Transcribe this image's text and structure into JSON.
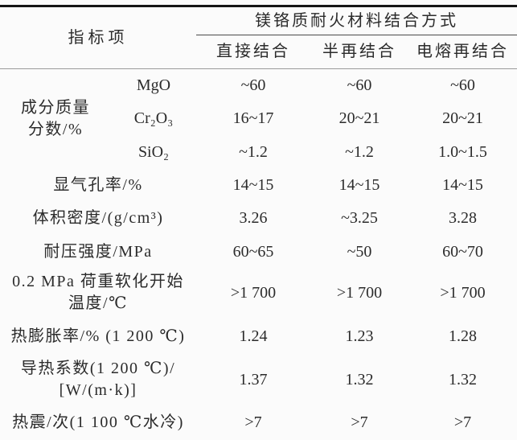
{
  "table": {
    "header": {
      "indicator_col": "指标项",
      "spanner": "镁铬质耐火材料结合方式",
      "columns": [
        "直接结合",
        "半再结合",
        "电熔再结合"
      ]
    },
    "composition_group": {
      "label": "成分质量\n分数/%",
      "rows": [
        {
          "sub": "MgO",
          "values": [
            "~60",
            "~60",
            "~60"
          ]
        },
        {
          "sub": "Cr₂O₃",
          "values": [
            "16~17",
            "20~21",
            "20~21"
          ]
        },
        {
          "sub": "SiO₂",
          "values": [
            "~1.2",
            "~1.2",
            "1.0~1.5"
          ]
        }
      ]
    },
    "rows": [
      {
        "label": "显气孔率/%",
        "values": [
          "14~15",
          "14~15",
          "14~15"
        ]
      },
      {
        "label": "体积密度/(g/cm³)",
        "values": [
          "3.26",
          "~3.25",
          "3.28"
        ]
      },
      {
        "label": "耐压强度/MPa",
        "values": [
          "60~65",
          "~50",
          "60~70"
        ]
      },
      {
        "label": "0.2 MPa 荷重软化开始\n温度/℃",
        "values": [
          ">1 700",
          ">1 700",
          ">1 700"
        ]
      },
      {
        "label": "热膨胀率/% (1 200 ℃)",
        "values": [
          "1.24",
          "1.23",
          "1.28"
        ]
      },
      {
        "label": "导热系数(1 200 ℃)/\n[W/(m·k)]",
        "values": [
          "1.37",
          "1.32",
          "1.32"
        ]
      },
      {
        "label": "热震/次(1 100 ℃水冷)",
        "values": [
          ">7",
          ">7",
          ">7"
        ]
      }
    ],
    "colors": {
      "background": "#fbfbfb",
      "text": "#2b2b2b",
      "rule_heavy": "#161616",
      "rule_light": "#9a9a9a"
    }
  }
}
